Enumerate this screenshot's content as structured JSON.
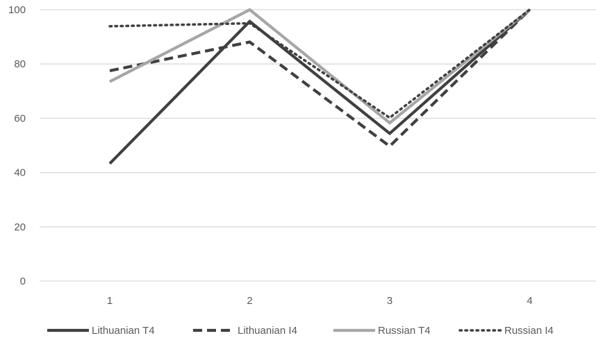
{
  "chart_data": {
    "type": "line",
    "title": "",
    "xlabel": "",
    "ylabel": "",
    "categories": [
      "1",
      "2",
      "3",
      "4"
    ],
    "ylim": [
      0,
      100
    ],
    "yticks": [
      0,
      20,
      40,
      60,
      80,
      100
    ],
    "grid": true,
    "legend_position": "bottom",
    "series": [
      {
        "name": "Lithuanian T4",
        "values": [
          43.3,
          95.7,
          54.4,
          100
        ],
        "color": "#404040",
        "style": "solid"
      },
      {
        "name": "Lithuanian I4",
        "values": [
          77.5,
          88.1,
          49.7,
          100
        ],
        "color": "#404040",
        "style": "dashed"
      },
      {
        "name": "Russian T4",
        "values": [
          73.5,
          100,
          58.3,
          100
        ],
        "color": "#a6a6a6",
        "style": "solid"
      },
      {
        "name": "Russian I4",
        "values": [
          93.9,
          95,
          60.2,
          100
        ],
        "color": "#404040",
        "style": "dotted"
      }
    ]
  }
}
